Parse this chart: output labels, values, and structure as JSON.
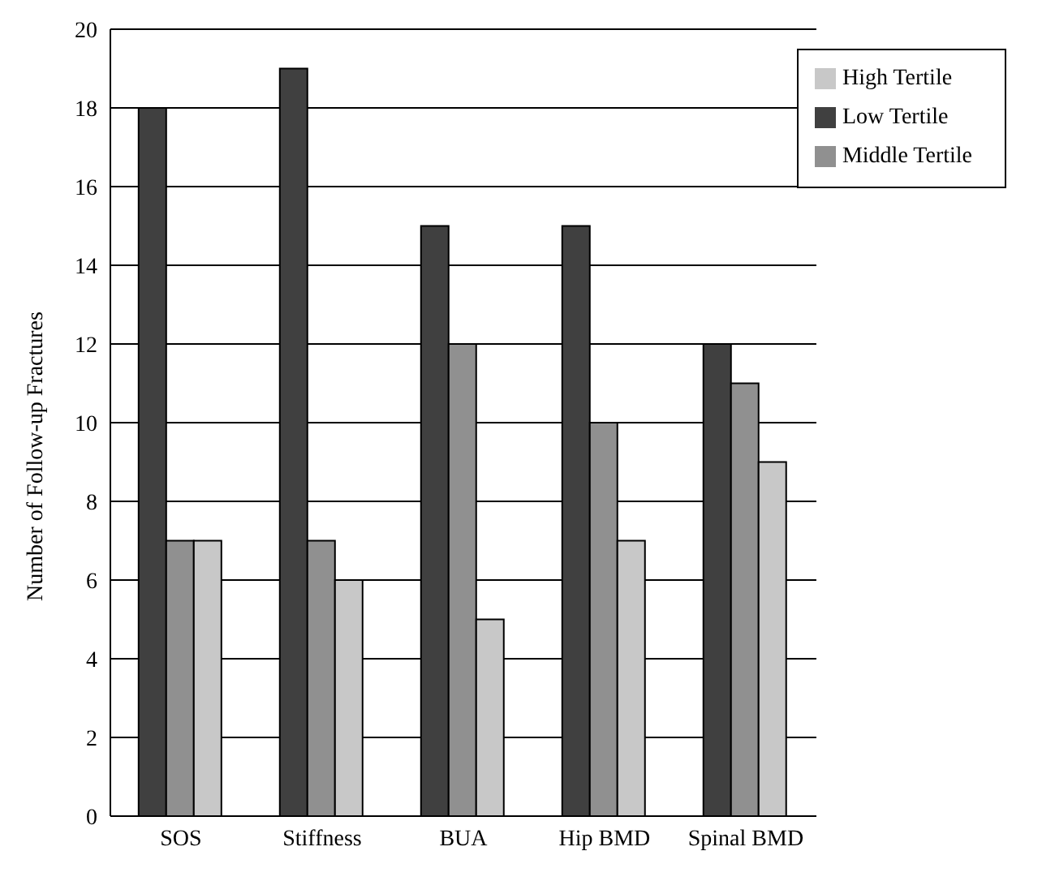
{
  "chart_data": {
    "type": "bar",
    "ylabel": "Number of Follow-up Fractures",
    "categories": [
      "SOS",
      "Stiffness",
      "BUA",
      "Hip BMD",
      "Spinal BMD"
    ],
    "series": [
      {
        "name": "Low Tertile",
        "color": "#404040",
        "values": [
          18,
          19,
          15,
          15,
          12
        ]
      },
      {
        "name": "Middle Tertile",
        "color": "#909090",
        "values": [
          7,
          7,
          12,
          10,
          11
        ]
      },
      {
        "name": "High Tertile",
        "color": "#c8c8c8",
        "values": [
          7,
          6,
          5,
          7,
          9
        ]
      }
    ],
    "ylim": [
      0,
      20
    ],
    "yticks": [
      0,
      2,
      4,
      6,
      8,
      10,
      12,
      14,
      16,
      18,
      20
    ],
    "grid": "y",
    "legend": "top right"
  }
}
